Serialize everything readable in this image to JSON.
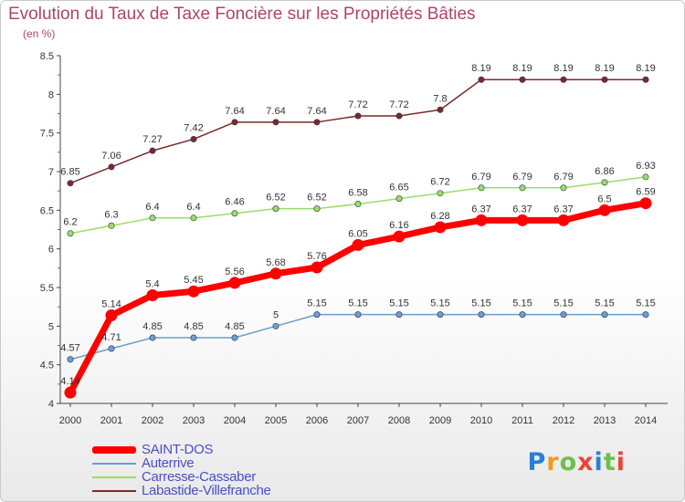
{
  "chart_data": {
    "type": "line",
    "title": "Evolution du Taux de Taxe Foncière sur les Propriétés Bâties",
    "subtitle": "(en %)",
    "xlabel": "",
    "ylabel": "",
    "categories": [
      "2000",
      "2001",
      "2002",
      "2003",
      "2004",
      "2005",
      "2006",
      "2007",
      "2008",
      "2009",
      "2010",
      "2011",
      "2012",
      "2013",
      "2014"
    ],
    "ylim": [
      4,
      8.5
    ],
    "yticks": [
      "4",
      "4.5",
      "5",
      "5.5",
      "6",
      "6.5",
      "7",
      "7.5",
      "8",
      "8.5"
    ],
    "grid": false,
    "legend_position": "bottom-left",
    "series": [
      {
        "name": "SAINT-DOS",
        "color": "#ff0000",
        "values": [
          4.14,
          5.14,
          5.4,
          5.45,
          5.56,
          5.68,
          5.76,
          6.05,
          6.16,
          6.28,
          6.37,
          6.37,
          6.37,
          6.5,
          6.59
        ],
        "labels": [
          "4.14",
          "5.14",
          "5.4",
          "5.45",
          "5.56",
          "5.68",
          "5.76",
          "6.05",
          "6.16",
          "6.28",
          "6.37",
          "6.37",
          "6.37",
          "6.5",
          "6.59"
        ]
      },
      {
        "name": "Auterrive",
        "color": "#6a9fcf",
        "values": [
          4.57,
          4.71,
          4.85,
          4.85,
          4.85,
          5,
          5.15,
          5.15,
          5.15,
          5.15,
          5.15,
          5.15,
          5.15,
          5.15,
          5.15
        ],
        "labels": [
          "4.57",
          "4.71",
          "4.85",
          "4.85",
          "4.85",
          "5",
          "5.15",
          "5.15",
          "5.15",
          "5.15",
          "5.15",
          "5.15",
          "5.15",
          "5.15",
          "5.15"
        ]
      },
      {
        "name": "Carresse-Cassaber",
        "color": "#99dd66",
        "values": [
          6.2,
          6.3,
          6.4,
          6.4,
          6.46,
          6.52,
          6.52,
          6.58,
          6.65,
          6.72,
          6.79,
          6.79,
          6.79,
          6.86,
          6.93
        ],
        "labels": [
          "6.2",
          "6.3",
          "6.4",
          "6.4",
          "6.46",
          "6.52",
          "6.52",
          "6.58",
          "6.65",
          "6.72",
          "6.79",
          "6.79",
          "6.79",
          "6.86",
          "6.93"
        ]
      },
      {
        "name": "Labastide-Villefranche",
        "color": "#7a2a2a",
        "values": [
          6.85,
          7.06,
          7.27,
          7.42,
          7.64,
          7.64,
          7.64,
          7.72,
          7.72,
          7.8,
          8.19,
          8.19,
          8.19,
          8.19,
          8.19
        ],
        "labels": [
          "6.85",
          "7.06",
          "7.27",
          "7.42",
          "7.64",
          "7.64",
          "7.64",
          "7.72",
          "7.72",
          "7.8",
          "8.19",
          "8.19",
          "8.19",
          "8.19",
          "8.19"
        ]
      }
    ]
  },
  "logo": {
    "text": "Proxiti"
  }
}
